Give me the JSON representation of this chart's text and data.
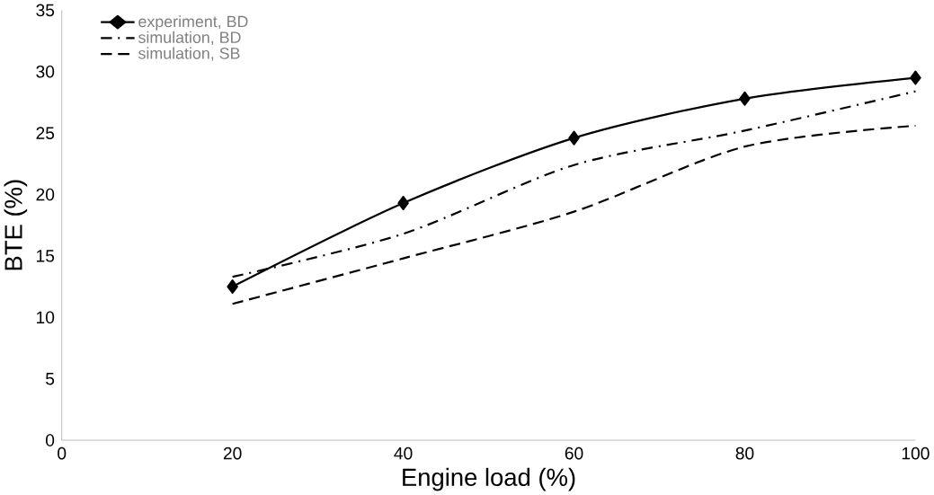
{
  "chart_data": {
    "type": "line",
    "xlabel": "Engine load (%)",
    "ylabel": "BTE (%)",
    "x": [
      20,
      40,
      60,
      80,
      100
    ],
    "series": [
      {
        "name": "experiment, BD",
        "color": "#000000",
        "marker": "diamond",
        "line_style": "solid",
        "values": [
          12.5,
          19.3,
          24.6,
          27.8,
          29.5
        ]
      },
      {
        "name": "simulation, BD",
        "color": "#000000",
        "marker": "none",
        "line_style": "dashdot",
        "values": [
          13.3,
          16.8,
          22.4,
          25.2,
          28.4
        ]
      },
      {
        "name": "simulation, SB",
        "color": "#000000",
        "marker": "none",
        "line_style": "dashed",
        "values": [
          11.1,
          14.8,
          18.6,
          23.9,
          25.6
        ]
      }
    ],
    "xlim": [
      0,
      100
    ],
    "xticks": [
      0,
      20,
      40,
      60,
      80,
      100
    ],
    "ylim": [
      0,
      35
    ],
    "yticks": [
      0,
      5,
      10,
      15,
      20,
      25,
      30,
      35
    ],
    "grid": false,
    "legend": "top left"
  }
}
